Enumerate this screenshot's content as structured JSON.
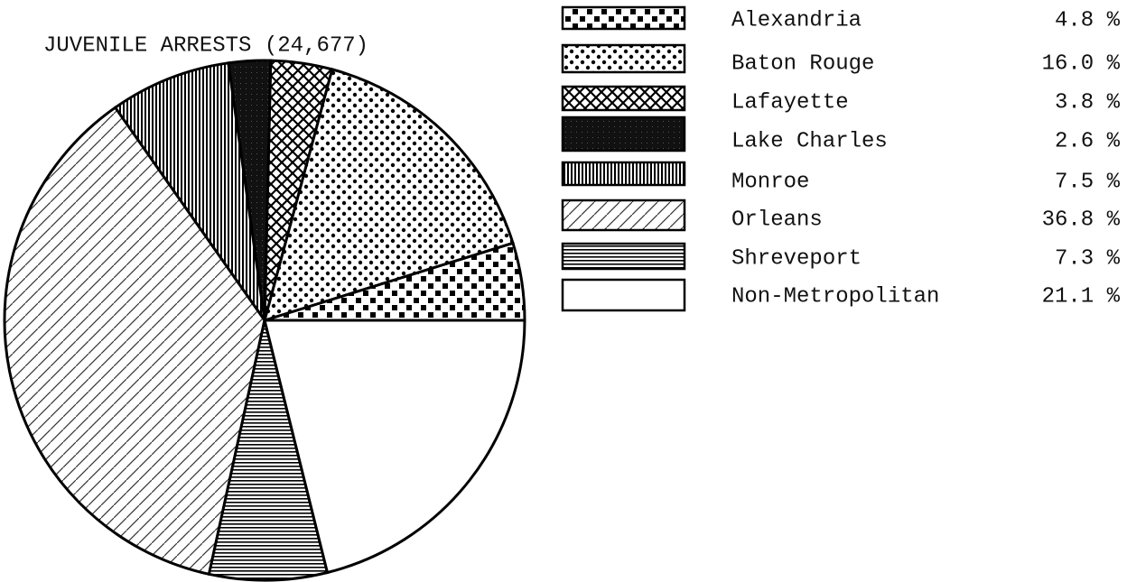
{
  "chart_data": {
    "type": "pie",
    "title": "JUVENILE ARRESTS (24,677)",
    "categories": [
      "Alexandria",
      "Baton Rouge",
      "Lafayette",
      "Lake Charles",
      "Monroe",
      "Orleans",
      "Shreveport",
      "Non-Metropolitan"
    ],
    "values": [
      4.8,
      16.0,
      3.8,
      2.6,
      7.5,
      36.8,
      7.3,
      21.1
    ],
    "value_labels": [
      "4.8 %",
      "16.0 %",
      "3.8 %",
      "2.6 %",
      "7.5 %",
      "36.8 %",
      "7.3 %",
      "21.1 %"
    ],
    "legend": "right"
  }
}
